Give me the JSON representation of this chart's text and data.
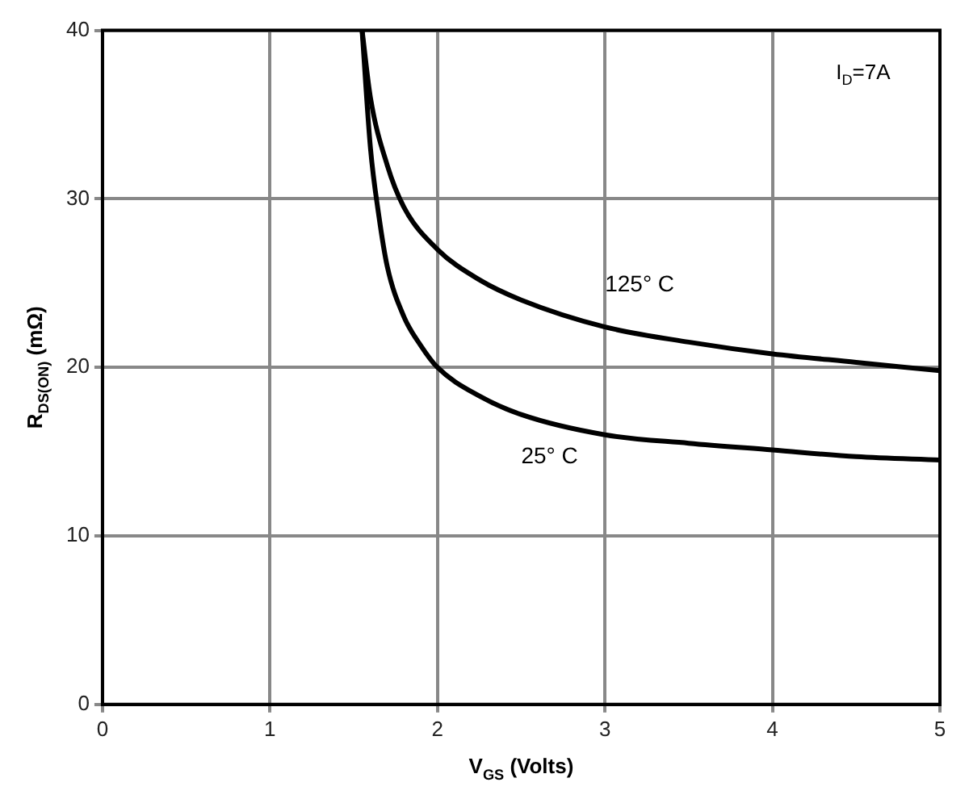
{
  "chart_data": {
    "type": "line",
    "xlabel": "V$_{GS}$ (Volts)",
    "ylabel": "R$_{DS(ON)}$ (mΩ)",
    "annotations": [
      "I$_{D}$=7A"
    ],
    "xlim": [
      0,
      5
    ],
    "xticks": [
      0,
      1,
      2,
      3,
      4,
      5
    ],
    "ylim": [
      0,
      40
    ],
    "yticks": [
      0,
      10,
      20,
      30,
      40
    ],
    "grid": true,
    "legend": false,
    "marker": "none",
    "line_style": "solid",
    "series": [
      {
        "name": "125° C",
        "color": "#000000",
        "x": [
          1.55,
          1.6,
          1.7,
          1.8,
          2,
          2.25,
          2.5,
          3,
          3.5,
          4,
          4.5,
          5
        ],
        "values": [
          40,
          36,
          32,
          29.5,
          27,
          25.2,
          24,
          22.4,
          21.5,
          20.8,
          20.3,
          19.8
        ]
      },
      {
        "name": "25° C",
        "color": "#000000",
        "x": [
          1.55,
          1.6,
          1.65,
          1.7,
          1.8,
          1.9,
          2,
          2.25,
          2.5,
          3,
          3.5,
          4,
          4.5,
          5
        ],
        "values": [
          40,
          33,
          29,
          26,
          23,
          21.3,
          20,
          18.3,
          17.2,
          16,
          15.5,
          15.1,
          14.7,
          14.5
        ]
      }
    ]
  }
}
